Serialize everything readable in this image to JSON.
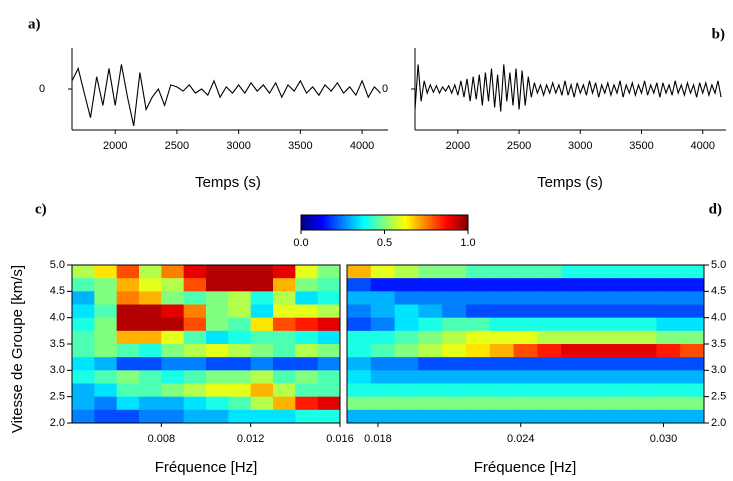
{
  "chart_data": [
    {
      "type": "line",
      "label": "a)",
      "x_label": "Temps (s)",
      "xlim": [
        1650,
        4210
      ],
      "xticks": [
        2000,
        2500,
        3000,
        3500,
        4000
      ],
      "ylim": [
        -1,
        1
      ],
      "yticks": [
        0
      ],
      "series": [
        {
          "color": "#000000",
          "x": [
            1650,
            1700,
            1750,
            1800,
            1850,
            1900,
            1950,
            2000,
            2050,
            2100,
            2150,
            2200,
            2250,
            2300,
            2350,
            2400,
            2450,
            2500,
            2550,
            2600,
            2650,
            2700,
            2750,
            2800,
            2850,
            2900,
            2950,
            3000,
            3050,
            3100,
            3150,
            3200,
            3250,
            3300,
            3350,
            3400,
            3450,
            3500,
            3550,
            3600,
            3650,
            3700,
            3750,
            3800,
            3850,
            3900,
            3950,
            4000,
            4050,
            4100,
            4150
          ],
          "values": [
            0.2,
            0.5,
            -0.1,
            -0.7,
            0.3,
            -0.4,
            0.5,
            -0.4,
            0.6,
            -0.2,
            -0.9,
            0.4,
            -0.5,
            -0.2,
            0.0,
            -0.4,
            0.1,
            0.05,
            -0.05,
            0.1,
            -0.1,
            0.0,
            -0.15,
            0.2,
            -0.2,
            0.05,
            -0.1,
            0.1,
            -0.1,
            0.15,
            -0.05,
            0.1,
            -0.1,
            0.15,
            -0.2,
            0.1,
            -0.05,
            0.2,
            -0.1,
            0.05,
            -0.15,
            0.1,
            -0.05,
            0.15,
            -0.1,
            0.05,
            -0.15,
            0.2,
            -0.2,
            0.05,
            -0.1
          ]
        }
      ]
    },
    {
      "type": "line",
      "label": "b)",
      "x_label": "Temps (s)",
      "xlim": [
        1650,
        4190
      ],
      "xticks": [
        2000,
        2500,
        3000,
        3500,
        4000
      ],
      "ylim": [
        -1,
        1
      ],
      "yticks": [
        0
      ],
      "series": [
        {
          "color": "#000000",
          "x": [
            1650,
            1675,
            1700,
            1725,
            1750,
            1775,
            1800,
            1825,
            1850,
            1875,
            1900,
            1925,
            1950,
            1975,
            2000,
            2025,
            2050,
            2075,
            2100,
            2125,
            2150,
            2175,
            2200,
            2225,
            2250,
            2275,
            2300,
            2325,
            2350,
            2375,
            2400,
            2425,
            2450,
            2475,
            2500,
            2525,
            2550,
            2575,
            2600,
            2625,
            2650,
            2675,
            2700,
            2725,
            2750,
            2775,
            2800,
            2825,
            2850,
            2875,
            2900,
            2925,
            2950,
            2975,
            3000,
            3025,
            3050,
            3075,
            3100,
            3125,
            3150,
            3175,
            3200,
            3225,
            3250,
            3275,
            3300,
            3325,
            3350,
            3375,
            3400,
            3425,
            3450,
            3475,
            3500,
            3525,
            3550,
            3575,
            3600,
            3625,
            3650,
            3675,
            3700,
            3725,
            3750,
            3775,
            3800,
            3825,
            3850,
            3875,
            3900,
            3925,
            3950,
            3975,
            4000,
            4025,
            4050,
            4075,
            4100,
            4125,
            4150
          ],
          "values": [
            -0.5,
            0.6,
            -0.3,
            0.2,
            -0.1,
            0.1,
            -0.08,
            0.08,
            -0.1,
            0.05,
            -0.05,
            0.08,
            -0.1,
            0.1,
            -0.15,
            0.2,
            -0.2,
            0.25,
            -0.3,
            0.3,
            -0.25,
            0.35,
            -0.4,
            0.4,
            -0.3,
            0.5,
            -0.45,
            0.35,
            -0.55,
            0.6,
            -0.3,
            0.4,
            -0.4,
            0.5,
            -0.5,
            0.45,
            -0.4,
            0.3,
            -0.2,
            0.15,
            -0.1,
            0.1,
            -0.15,
            0.1,
            -0.1,
            0.15,
            -0.1,
            0.1,
            -0.15,
            0.2,
            -0.15,
            0.1,
            -0.2,
            0.15,
            -0.1,
            0.1,
            -0.15,
            0.2,
            -0.1,
            0.15,
            -0.2,
            0.1,
            -0.1,
            0.15,
            -0.15,
            0.1,
            -0.1,
            0.2,
            -0.2,
            0.1,
            -0.1,
            0.15,
            -0.15,
            0.1,
            -0.1,
            0.2,
            -0.15,
            0.1,
            -0.1,
            0.15,
            -0.2,
            0.15,
            -0.1,
            0.1,
            -0.15,
            0.2,
            -0.1,
            0.1,
            -0.15,
            0.15,
            -0.1,
            0.1,
            -0.2,
            0.15,
            -0.1,
            0.15,
            -0.15,
            0.1,
            -0.1,
            0.2,
            -0.2
          ]
        }
      ]
    },
    {
      "type": "heatmap",
      "label": "c)",
      "x_label": "Fréquence [Hz]",
      "y_label": "Vitesse de Groupe [km/s]",
      "xlim": [
        0.004,
        0.016
      ],
      "xticks": [
        0.008,
        0.012,
        0.016
      ],
      "ylim": [
        2,
        5
      ],
      "yticks": [
        {
          "value": 2,
          "label": "2.0"
        },
        2.5,
        {
          "value": 3,
          "label": "3.0"
        },
        3.5,
        {
          "value": 4,
          "label": "4.0"
        },
        4.5,
        {
          "value": 5,
          "label": "5.0"
        }
      ],
      "zlim": [
        0,
        1
      ],
      "zticks": [
        {
          "value": 0,
          "label": "0.0"
        },
        0.5,
        {
          "value": 1,
          "label": "1.0"
        }
      ],
      "x": [
        0.0045,
        0.0055,
        0.0065,
        0.0075,
        0.0085,
        0.0095,
        0.0105,
        0.0115,
        0.0125,
        0.0135,
        0.0145,
        0.0155
      ],
      "y": [
        4.875,
        4.625,
        4.375,
        4.125,
        3.875,
        3.625,
        3.375,
        3.125,
        2.875,
        2.625,
        2.375,
        2.125
      ],
      "z": [
        [
          0.55,
          0.65,
          0.8,
          0.55,
          0.75,
          0.9,
          0.95,
          0.95,
          0.95,
          0.9,
          0.6,
          0.5
        ],
        [
          0.45,
          0.5,
          0.7,
          0.6,
          0.55,
          0.8,
          0.95,
          0.95,
          0.95,
          0.7,
          0.5,
          0.45
        ],
        [
          0.3,
          0.5,
          0.75,
          0.7,
          0.5,
          0.45,
          0.5,
          0.55,
          0.4,
          0.55,
          0.35,
          0.4
        ],
        [
          0.35,
          0.45,
          0.95,
          0.95,
          0.9,
          0.75,
          0.5,
          0.55,
          0.35,
          0.6,
          0.6,
          0.55
        ],
        [
          0.4,
          0.5,
          0.95,
          0.95,
          0.95,
          0.8,
          0.5,
          0.45,
          0.65,
          0.8,
          0.85,
          0.9
        ],
        [
          0.45,
          0.5,
          0.7,
          0.7,
          0.6,
          0.45,
          0.35,
          0.4,
          0.45,
          0.45,
          0.4,
          0.35
        ],
        [
          0.45,
          0.5,
          0.45,
          0.4,
          0.5,
          0.55,
          0.6,
          0.55,
          0.5,
          0.45,
          0.55,
          0.5
        ],
        [
          0.35,
          0.3,
          0.2,
          0.2,
          0.25,
          0.25,
          0.2,
          0.2,
          0.25,
          0.2,
          0.2,
          0.25
        ],
        [
          0.4,
          0.45,
          0.5,
          0.45,
          0.4,
          0.45,
          0.5,
          0.5,
          0.55,
          0.45,
          0.5,
          0.45
        ],
        [
          0.3,
          0.35,
          0.45,
          0.45,
          0.5,
          0.55,
          0.6,
          0.6,
          0.7,
          0.55,
          0.45,
          0.45
        ],
        [
          0.3,
          0.25,
          0.35,
          0.3,
          0.3,
          0.35,
          0.4,
          0.45,
          0.55,
          0.7,
          0.85,
          0.9
        ],
        [
          0.25,
          0.2,
          0.2,
          0.25,
          0.25,
          0.3,
          0.3,
          0.35,
          0.35,
          0.35,
          0.4,
          0.4
        ]
      ]
    },
    {
      "type": "heatmap",
      "label": "d)",
      "x_label": "Fréquence [Hz]",
      "xlim": [
        0.0167,
        0.0317
      ],
      "xticks": [
        0.018,
        0.024,
        {
          "value": 0.03,
          "label": "0.030"
        }
      ],
      "ylim": [
        2,
        5
      ],
      "yticks": [
        {
          "value": 2,
          "label": "2.0"
        },
        2.5,
        {
          "value": 3,
          "label": "3.0"
        },
        3.5,
        {
          "value": 4,
          "label": "4.0"
        },
        4.5,
        {
          "value": 5,
          "label": "5.0"
        }
      ],
      "x": [
        0.0172,
        0.0182,
        0.0192,
        0.0202,
        0.0212,
        0.0222,
        0.0232,
        0.0242,
        0.0252,
        0.0262,
        0.0272,
        0.0282,
        0.0292,
        0.0302,
        0.0312
      ],
      "y": [
        4.875,
        4.625,
        4.375,
        4.125,
        3.875,
        3.625,
        3.375,
        3.125,
        2.875,
        2.625,
        2.375,
        2.125
      ],
      "z": [
        [
          0.7,
          0.6,
          0.55,
          0.5,
          0.5,
          0.45,
          0.45,
          0.45,
          0.45,
          0.4,
          0.4,
          0.4,
          0.4,
          0.4,
          0.4
        ],
        [
          0.2,
          0.15,
          0.15,
          0.15,
          0.15,
          0.15,
          0.15,
          0.15,
          0.15,
          0.15,
          0.15,
          0.15,
          0.15,
          0.15,
          0.15
        ],
        [
          0.3,
          0.3,
          0.25,
          0.25,
          0.25,
          0.25,
          0.25,
          0.25,
          0.25,
          0.25,
          0.25,
          0.25,
          0.25,
          0.25,
          0.25
        ],
        [
          0.25,
          0.3,
          0.35,
          0.3,
          0.25,
          0.2,
          0.2,
          0.2,
          0.2,
          0.2,
          0.2,
          0.2,
          0.2,
          0.2,
          0.2
        ],
        [
          0.2,
          0.25,
          0.35,
          0.4,
          0.45,
          0.45,
          0.4,
          0.4,
          0.4,
          0.4,
          0.4,
          0.4,
          0.4,
          0.35,
          0.35
        ],
        [
          0.4,
          0.4,
          0.45,
          0.5,
          0.55,
          0.6,
          0.6,
          0.6,
          0.55,
          0.55,
          0.55,
          0.55,
          0.55,
          0.5,
          0.5
        ],
        [
          0.4,
          0.45,
          0.5,
          0.55,
          0.6,
          0.65,
          0.7,
          0.8,
          0.85,
          0.9,
          0.9,
          0.9,
          0.9,
          0.85,
          0.8
        ],
        [
          0.3,
          0.25,
          0.25,
          0.2,
          0.2,
          0.2,
          0.2,
          0.2,
          0.2,
          0.2,
          0.2,
          0.2,
          0.2,
          0.2,
          0.2
        ],
        [
          0.35,
          0.3,
          0.3,
          0.3,
          0.3,
          0.3,
          0.3,
          0.3,
          0.3,
          0.3,
          0.3,
          0.3,
          0.3,
          0.3,
          0.3
        ],
        [
          0.4,
          0.4,
          0.4,
          0.4,
          0.4,
          0.4,
          0.4,
          0.4,
          0.4,
          0.4,
          0.4,
          0.4,
          0.4,
          0.4,
          0.4
        ],
        [
          0.5,
          0.5,
          0.5,
          0.5,
          0.5,
          0.5,
          0.5,
          0.5,
          0.5,
          0.5,
          0.5,
          0.5,
          0.5,
          0.5,
          0.5
        ],
        [
          0.3,
          0.3,
          0.3,
          0.3,
          0.3,
          0.3,
          0.3,
          0.3,
          0.3,
          0.3,
          0.3,
          0.3,
          0.3,
          0.3,
          0.3
        ]
      ]
    }
  ]
}
